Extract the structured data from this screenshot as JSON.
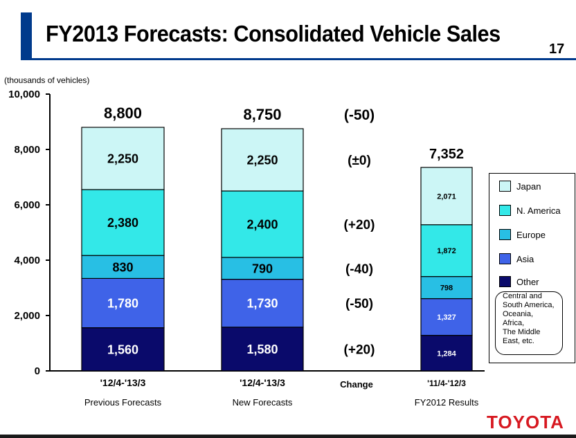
{
  "header": {
    "title": "FY2013 Forecasts: Consolidated Vehicle Sales",
    "page_number": "17",
    "logo": "TOYOTA"
  },
  "chart_data": {
    "type": "bar",
    "stacked": true,
    "unit_label": "(thousands of vehicles)",
    "ylim": [
      0,
      10000
    ],
    "yticks": [
      "0",
      "2,000",
      "4,000",
      "6,000",
      "8,000",
      "10,000"
    ],
    "series": [
      {
        "name": "Other",
        "color": "#0a0a6b",
        "text_color": "#ffffff"
      },
      {
        "name": "Asia",
        "color": "#3f63e8",
        "text_color": "#ffffff"
      },
      {
        "name": "Europe",
        "color": "#28bfe4",
        "text_color": "#000000"
      },
      {
        "name": "N. America",
        "color": "#33e8e8",
        "text_color": "#000000"
      },
      {
        "name": "Japan",
        "color": "#ccf6f6",
        "text_color": "#000000"
      }
    ],
    "bars": [
      {
        "period": "'12/4-'13/3",
        "caption": "Previous Forecasts",
        "total_label": "8,800",
        "values": [
          1560,
          1780,
          830,
          2380,
          2250
        ],
        "value_labels": [
          "1,560",
          "1,780",
          "830",
          "2,380",
          "2,250"
        ]
      },
      {
        "period": "'12/4-'13/3",
        "caption": "New Forecasts",
        "total_label": "8,750",
        "values": [
          1580,
          1730,
          790,
          2400,
          2250
        ],
        "value_labels": [
          "1,580",
          "1,730",
          "790",
          "2,400",
          "2,250"
        ]
      },
      {
        "period": "'11/4-'12/3",
        "caption": "FY2012 Results",
        "total_label": "7,352",
        "values": [
          1284,
          1327,
          798,
          1872,
          2071
        ],
        "value_labels": [
          "1,284",
          "1,327",
          "798",
          "1,872",
          "2,071"
        ]
      }
    ],
    "change": {
      "header": "Change",
      "total": "(-50)",
      "segments": [
        "(+20)",
        "(-50)",
        "(-40)",
        "(+20)",
        "(±0)"
      ]
    },
    "legend_note": "Central and\nSouth America,\nOceania,\nAfrica,\nThe Middle\nEast, etc."
  }
}
